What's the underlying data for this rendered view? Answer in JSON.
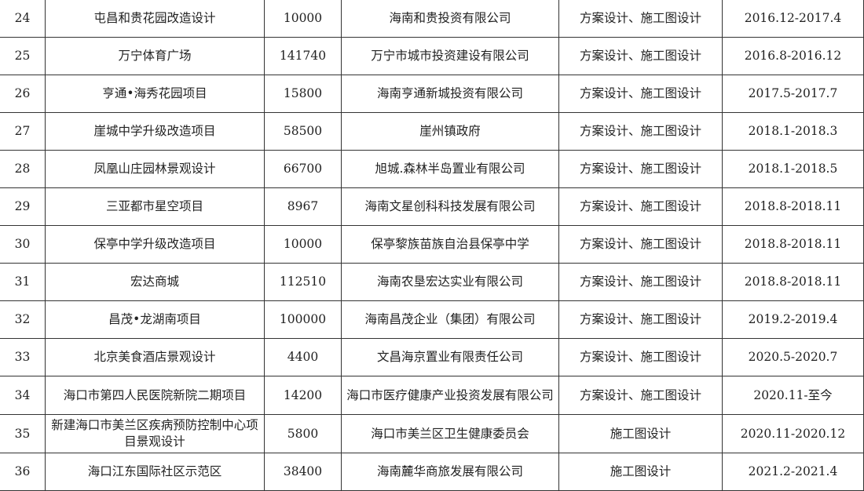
{
  "table": {
    "rows": [
      {
        "no": "24",
        "name": "屯昌和贵花园改造设计",
        "area": "10000",
        "client": "海南和贵投资有限公司",
        "scope": "方案设计、施工图设计",
        "period": "2016.12-2017.4"
      },
      {
        "no": "25",
        "name": "万宁体育广场",
        "area": "141740",
        "client": "万宁市城市投资建设有限公司",
        "scope": "方案设计、施工图设计",
        "period": "2016.8-2016.12"
      },
      {
        "no": "26",
        "name": "亨通•海秀花园项目",
        "area": "15800",
        "client": "海南亨通新城投资有限公司",
        "scope": "方案设计、施工图设计",
        "period": "2017.5-2017.7"
      },
      {
        "no": "27",
        "name": "崖城中学升级改造项目",
        "area": "58500",
        "client": "崖州镇政府",
        "scope": "方案设计、施工图设计",
        "period": "2018.1-2018.3"
      },
      {
        "no": "28",
        "name": "凤凰山庄园林景观设计",
        "area": "66700",
        "client": "旭城.森林半岛置业有限公司",
        "scope": "方案设计、施工图设计",
        "period": "2018.1-2018.5"
      },
      {
        "no": "29",
        "name": "三亚都市星空项目",
        "area": "8967",
        "client": "海南文星创科科技发展有限公司",
        "scope": "方案设计、施工图设计",
        "period": "2018.8-2018.11"
      },
      {
        "no": "30",
        "name": "保亭中学升级改造项目",
        "area": "10000",
        "client": "保亭黎族苗族自治县保亭中学",
        "scope": "方案设计、施工图设计",
        "period": "2018.8-2018.11"
      },
      {
        "no": "31",
        "name": "宏达商城",
        "area": "112510",
        "client": "海南农垦宏达实业有限公司",
        "scope": "方案设计、施工图设计",
        "period": "2018.8-2018.11"
      },
      {
        "no": "32",
        "name": "昌茂•龙湖南项目",
        "area": "100000",
        "client": "海南昌茂企业（集团）有限公司",
        "scope": "方案设计、施工图设计",
        "period": "2019.2-2019.4"
      },
      {
        "no": "33",
        "name": "北京美食酒店景观设计",
        "area": "4400",
        "client": "文昌海京置业有限责任公司",
        "scope": "方案设计、施工图设计",
        "period": "2020.5-2020.7"
      },
      {
        "no": "34",
        "name": "海口市第四人民医院新院二期项目",
        "area": "14200",
        "client": "海口市医疗健康产业投资发展有限公司",
        "scope": "方案设计、施工图设计",
        "period": "2020.11-至今"
      },
      {
        "no": "35",
        "name": "新建海口市美兰区疾病预防控制中心项目景观设计",
        "area": "5800",
        "client": "海口市美兰区卫生健康委员会",
        "scope": "施工图设计",
        "period": "2020.11-2020.12"
      },
      {
        "no": "36",
        "name": "海口江东国际社区示范区",
        "area": "38400",
        "client": "海南麓华商旅发展有限公司",
        "scope": "施工图设计",
        "period": "2021.2-2021.4"
      }
    ]
  }
}
